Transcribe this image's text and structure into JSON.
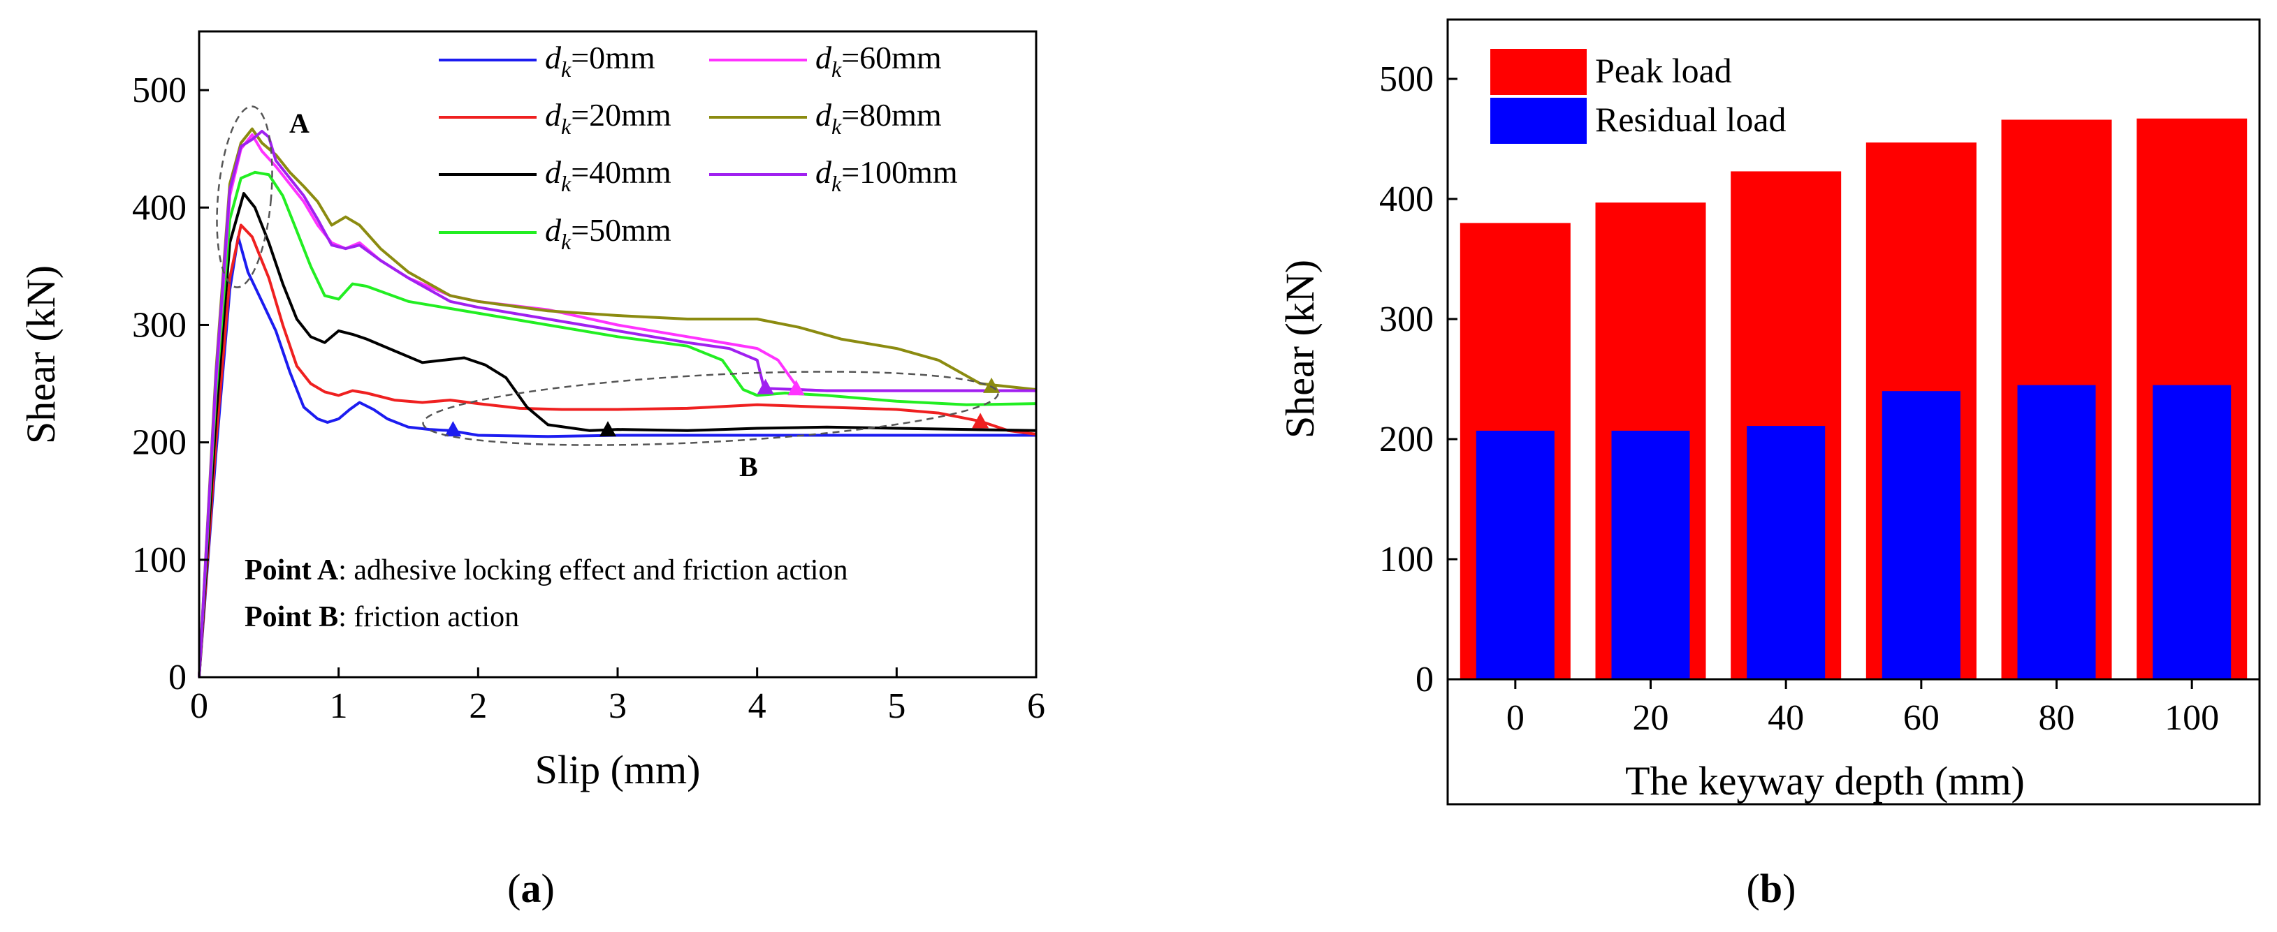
{
  "colors": {
    "d0": "#1c1cf0",
    "d20": "#ef2020",
    "d40": "#000000",
    "d50": "#22ee22",
    "d60": "#ff33ff",
    "d80": "#8b8b10",
    "d100": "#a020f0",
    "peak": "#ff0000",
    "residual": "#0000ff"
  },
  "chart_data": [
    {
      "type": "line",
      "panel_label": "(a)",
      "panel_letter": "a",
      "xlabel": "Slip (mm)",
      "ylabel": "Shear (kN)",
      "xlim": [
        0,
        6
      ],
      "ylim": [
        0,
        550
      ],
      "xticks": [
        0,
        1,
        2,
        3,
        4,
        5,
        6
      ],
      "yticks": [
        0,
        100,
        200,
        300,
        400,
        500
      ],
      "grid": false,
      "legend_placement": "top-right",
      "legend_symbol": "d",
      "legend_subscript": "k",
      "series": [
        {
          "name": "dk=0mm",
          "depth": "0",
          "color_key": "d0",
          "legend_label": "=0mm",
          "x": [
            0,
            0.12,
            0.22,
            0.28,
            0.35,
            0.45,
            0.55,
            0.65,
            0.75,
            0.85,
            0.92,
            1.0,
            1.08,
            1.15,
            1.25,
            1.35,
            1.5,
            1.65,
            1.8,
            2.0,
            2.5,
            3.0,
            4.0,
            5.0,
            6.0
          ],
          "y": [
            0,
            190,
            330,
            375,
            345,
            320,
            295,
            260,
            230,
            220,
            217,
            220,
            228,
            234,
            228,
            220,
            213,
            211,
            210,
            206,
            205,
            206,
            206,
            206,
            206
          ],
          "end_marker": {
            "x": 1.82,
            "y": 211
          }
        },
        {
          "name": "dk=20mm",
          "depth": "20",
          "color_key": "d20",
          "legend_label": "=20mm",
          "x": [
            0,
            0.12,
            0.22,
            0.3,
            0.38,
            0.5,
            0.6,
            0.7,
            0.8,
            0.9,
            1.0,
            1.1,
            1.2,
            1.4,
            1.6,
            1.8,
            2.0,
            2.3,
            2.6,
            3.0,
            3.5,
            4.0,
            4.5,
            5.0,
            5.3,
            5.6,
            5.8,
            6.0
          ],
          "y": [
            0,
            200,
            340,
            385,
            375,
            340,
            300,
            265,
            250,
            243,
            240,
            244,
            242,
            236,
            234,
            236,
            233,
            229,
            228,
            228,
            229,
            232,
            230,
            228,
            225,
            218,
            210,
            207
          ],
          "end_marker": {
            "x": 5.6,
            "y": 218
          }
        },
        {
          "name": "dk=40mm",
          "depth": "40",
          "color_key": "d40",
          "legend_label": "=40mm",
          "x": [
            0,
            0.12,
            0.22,
            0.32,
            0.4,
            0.5,
            0.6,
            0.7,
            0.8,
            0.9,
            1.0,
            1.1,
            1.2,
            1.4,
            1.6,
            1.75,
            1.9,
            2.05,
            2.2,
            2.35,
            2.5,
            2.8,
            3.0,
            3.5,
            4.0,
            4.5,
            5.0,
            5.5,
            6.0
          ],
          "y": [
            0,
            220,
            370,
            412,
            400,
            370,
            335,
            305,
            290,
            285,
            295,
            292,
            288,
            278,
            268,
            270,
            272,
            266,
            255,
            230,
            215,
            210,
            211,
            210,
            212,
            213,
            212,
            211,
            210
          ],
          "end_marker": {
            "x": 2.93,
            "y": 211
          }
        },
        {
          "name": "dk=50mm",
          "depth": "50",
          "color_key": "d50",
          "legend_label": "=50mm",
          "x": [
            0,
            0.12,
            0.22,
            0.3,
            0.4,
            0.5,
            0.6,
            0.7,
            0.8,
            0.9,
            1.0,
            1.1,
            1.2,
            1.5,
            2.0,
            2.5,
            3.0,
            3.5,
            3.75,
            3.9,
            4.0,
            4.2,
            4.5,
            5.0,
            5.5,
            6.0
          ],
          "y": [
            0,
            240,
            390,
            425,
            430,
            428,
            410,
            380,
            350,
            325,
            322,
            335,
            333,
            320,
            310,
            300,
            290,
            282,
            270,
            245,
            240,
            242,
            240,
            235,
            232,
            233
          ],
          "end_marker": null
        },
        {
          "name": "dk=60mm",
          "depth": "60",
          "color_key": "d60",
          "legend_label": "=60mm",
          "x": [
            0,
            0.12,
            0.22,
            0.3,
            0.38,
            0.45,
            0.55,
            0.65,
            0.75,
            0.85,
            0.95,
            1.05,
            1.15,
            1.3,
            1.5,
            1.8,
            2.0,
            2.5,
            3.0,
            3.5,
            4.0,
            4.15,
            4.3,
            4.5,
            5.0,
            5.5,
            6.0
          ],
          "y": [
            0,
            250,
            410,
            450,
            462,
            448,
            435,
            420,
            405,
            385,
            370,
            365,
            370,
            355,
            340,
            325,
            320,
            313,
            300,
            290,
            280,
            270,
            245,
            244,
            244,
            244,
            244
          ],
          "end_marker": {
            "x": 4.28,
            "y": 246
          }
        },
        {
          "name": "dk=80mm",
          "depth": "80",
          "color_key": "d80",
          "legend_label": "=80mm",
          "x": [
            0,
            0.12,
            0.22,
            0.3,
            0.38,
            0.45,
            0.55,
            0.65,
            0.75,
            0.85,
            0.95,
            1.05,
            1.15,
            1.3,
            1.5,
            1.8,
            2.0,
            2.5,
            3.0,
            3.5,
            4.0,
            4.3,
            4.6,
            5.0,
            5.3,
            5.6,
            6.0
          ],
          "y": [
            0,
            260,
            420,
            455,
            467,
            455,
            445,
            430,
            418,
            405,
            385,
            392,
            385,
            365,
            345,
            325,
            320,
            312,
            308,
            305,
            305,
            298,
            288,
            280,
            270,
            250,
            245
          ],
          "end_marker": {
            "x": 5.68,
            "y": 248
          }
        },
        {
          "name": "dk=100mm",
          "depth": "100",
          "color_key": "d100",
          "legend_label": "=100mm",
          "x": [
            0,
            0.12,
            0.22,
            0.3,
            0.38,
            0.45,
            0.5,
            0.55,
            0.65,
            0.75,
            0.85,
            0.95,
            1.05,
            1.15,
            1.3,
            1.5,
            1.8,
            2.0,
            2.5,
            3.0,
            3.5,
            3.8,
            4.0,
            4.05,
            4.5,
            5.0,
            5.5,
            6.0
          ],
          "y": [
            0,
            255,
            415,
            452,
            458,
            465,
            460,
            440,
            425,
            410,
            390,
            368,
            365,
            368,
            355,
            340,
            320,
            315,
            305,
            295,
            285,
            280,
            270,
            246,
            244,
            244,
            244,
            244
          ],
          "end_marker": {
            "x": 4.06,
            "y": 247
          }
        }
      ],
      "annotations": [
        {
          "id": "point-a",
          "text": "A",
          "x": 0.45,
          "y": 395
        },
        {
          "id": "point-b",
          "text": "B",
          "x": 3.8,
          "y": 230
        },
        {
          "id": "note-a",
          "bold": "Point A",
          "rest": ": adhesive locking effect and friction action"
        },
        {
          "id": "note-b",
          "bold": "Point B",
          "rest": ": friction action"
        }
      ]
    },
    {
      "type": "bar",
      "panel_label": "(b)",
      "panel_letter": "b",
      "xlabel": "The keyway depth (mm)",
      "ylabel": "Shear (kN)",
      "ylim": [
        0,
        550
      ],
      "yticks": [
        0,
        100,
        200,
        300,
        400,
        500
      ],
      "grid": false,
      "legend_placement": "top-left",
      "categories": [
        "0",
        "20",
        "40",
        "60",
        "80",
        "100"
      ],
      "series": [
        {
          "name": "Peak load",
          "color_key": "peak",
          "values": [
            380,
            397,
            423,
            447,
            466,
            467
          ]
        },
        {
          "name": "Residual load",
          "color_key": "residual",
          "values": [
            207,
            207,
            211,
            240,
            245,
            245
          ]
        }
      ]
    }
  ]
}
